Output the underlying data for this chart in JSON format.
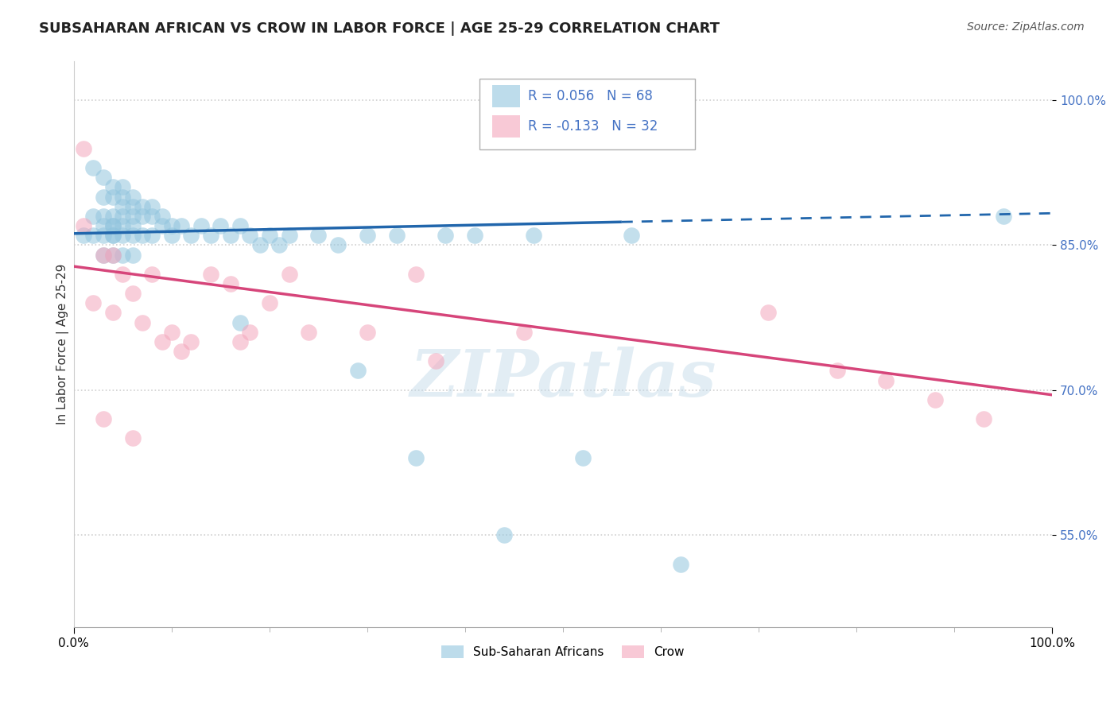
{
  "title": "SUBSAHARAN AFRICAN VS CROW IN LABOR FORCE | AGE 25-29 CORRELATION CHART",
  "source": "Source: ZipAtlas.com",
  "ylabel": "In Labor Force | Age 25-29",
  "xlim": [
    0.0,
    1.0
  ],
  "ylim": [
    0.455,
    1.04
  ],
  "yticks": [
    0.55,
    0.7,
    0.85,
    1.0
  ],
  "ytick_labels": [
    "55.0%",
    "70.0%",
    "85.0%",
    "100.0%"
  ],
  "xticks": [
    0.0,
    1.0
  ],
  "xtick_labels": [
    "0.0%",
    "100.0%"
  ],
  "legend_r1": "R = 0.056",
  "legend_n1": "N = 68",
  "legend_r2": "R = -0.133",
  "legend_n2": "N = 32",
  "blue_color": "#92c5de",
  "pink_color": "#f4a6bc",
  "trend_blue": "#2166ac",
  "trend_pink": "#d6457a",
  "blue_scatter_x": [
    0.01,
    0.02,
    0.02,
    0.02,
    0.03,
    0.03,
    0.03,
    0.03,
    0.03,
    0.03,
    0.04,
    0.04,
    0.04,
    0.04,
    0.04,
    0.04,
    0.04,
    0.04,
    0.05,
    0.05,
    0.05,
    0.05,
    0.05,
    0.05,
    0.05,
    0.06,
    0.06,
    0.06,
    0.06,
    0.06,
    0.06,
    0.07,
    0.07,
    0.07,
    0.08,
    0.08,
    0.08,
    0.09,
    0.09,
    0.1,
    0.1,
    0.11,
    0.12,
    0.13,
    0.14,
    0.15,
    0.16,
    0.17,
    0.17,
    0.18,
    0.19,
    0.2,
    0.21,
    0.22,
    0.25,
    0.27,
    0.29,
    0.3,
    0.33,
    0.35,
    0.38,
    0.41,
    0.44,
    0.47,
    0.52,
    0.57,
    0.62,
    0.95
  ],
  "blue_scatter_y": [
    0.86,
    0.93,
    0.88,
    0.86,
    0.92,
    0.9,
    0.88,
    0.87,
    0.86,
    0.84,
    0.91,
    0.9,
    0.88,
    0.87,
    0.87,
    0.86,
    0.86,
    0.84,
    0.91,
    0.9,
    0.89,
    0.88,
    0.87,
    0.86,
    0.84,
    0.9,
    0.89,
    0.88,
    0.87,
    0.86,
    0.84,
    0.89,
    0.88,
    0.86,
    0.89,
    0.88,
    0.86,
    0.88,
    0.87,
    0.87,
    0.86,
    0.87,
    0.86,
    0.87,
    0.86,
    0.87,
    0.86,
    0.87,
    0.77,
    0.86,
    0.85,
    0.86,
    0.85,
    0.86,
    0.86,
    0.85,
    0.72,
    0.86,
    0.86,
    0.63,
    0.86,
    0.86,
    0.55,
    0.86,
    0.63,
    0.86,
    0.52,
    0.88
  ],
  "pink_scatter_x": [
    0.01,
    0.01,
    0.02,
    0.03,
    0.03,
    0.04,
    0.04,
    0.05,
    0.06,
    0.06,
    0.07,
    0.08,
    0.09,
    0.1,
    0.11,
    0.12,
    0.14,
    0.16,
    0.17,
    0.18,
    0.2,
    0.22,
    0.24,
    0.3,
    0.35,
    0.37,
    0.46,
    0.71,
    0.78,
    0.83,
    0.88,
    0.93
  ],
  "pink_scatter_y": [
    0.95,
    0.87,
    0.79,
    0.84,
    0.67,
    0.84,
    0.78,
    0.82,
    0.8,
    0.65,
    0.77,
    0.82,
    0.75,
    0.76,
    0.74,
    0.75,
    0.82,
    0.81,
    0.75,
    0.76,
    0.79,
    0.82,
    0.76,
    0.76,
    0.82,
    0.73,
    0.76,
    0.78,
    0.72,
    0.71,
    0.69,
    0.67
  ],
  "blue_solid_trend_x": [
    0.0,
    0.56
  ],
  "blue_solid_trend_y": [
    0.862,
    0.874
  ],
  "blue_dashed_trend_x": [
    0.56,
    1.0
  ],
  "blue_dashed_trend_y": [
    0.874,
    0.883
  ],
  "pink_trend_x": [
    0.0,
    1.0
  ],
  "pink_trend_y": [
    0.828,
    0.695
  ],
  "dashed_line_y": 1.0,
  "background_color": "#ffffff",
  "watermark": "ZIPatlas",
  "title_fontsize": 13,
  "axis_label_fontsize": 11,
  "tick_fontsize": 11,
  "legend_fontsize": 12,
  "tick_color": "#4472c4",
  "grid_color": "#d0d0d0"
}
